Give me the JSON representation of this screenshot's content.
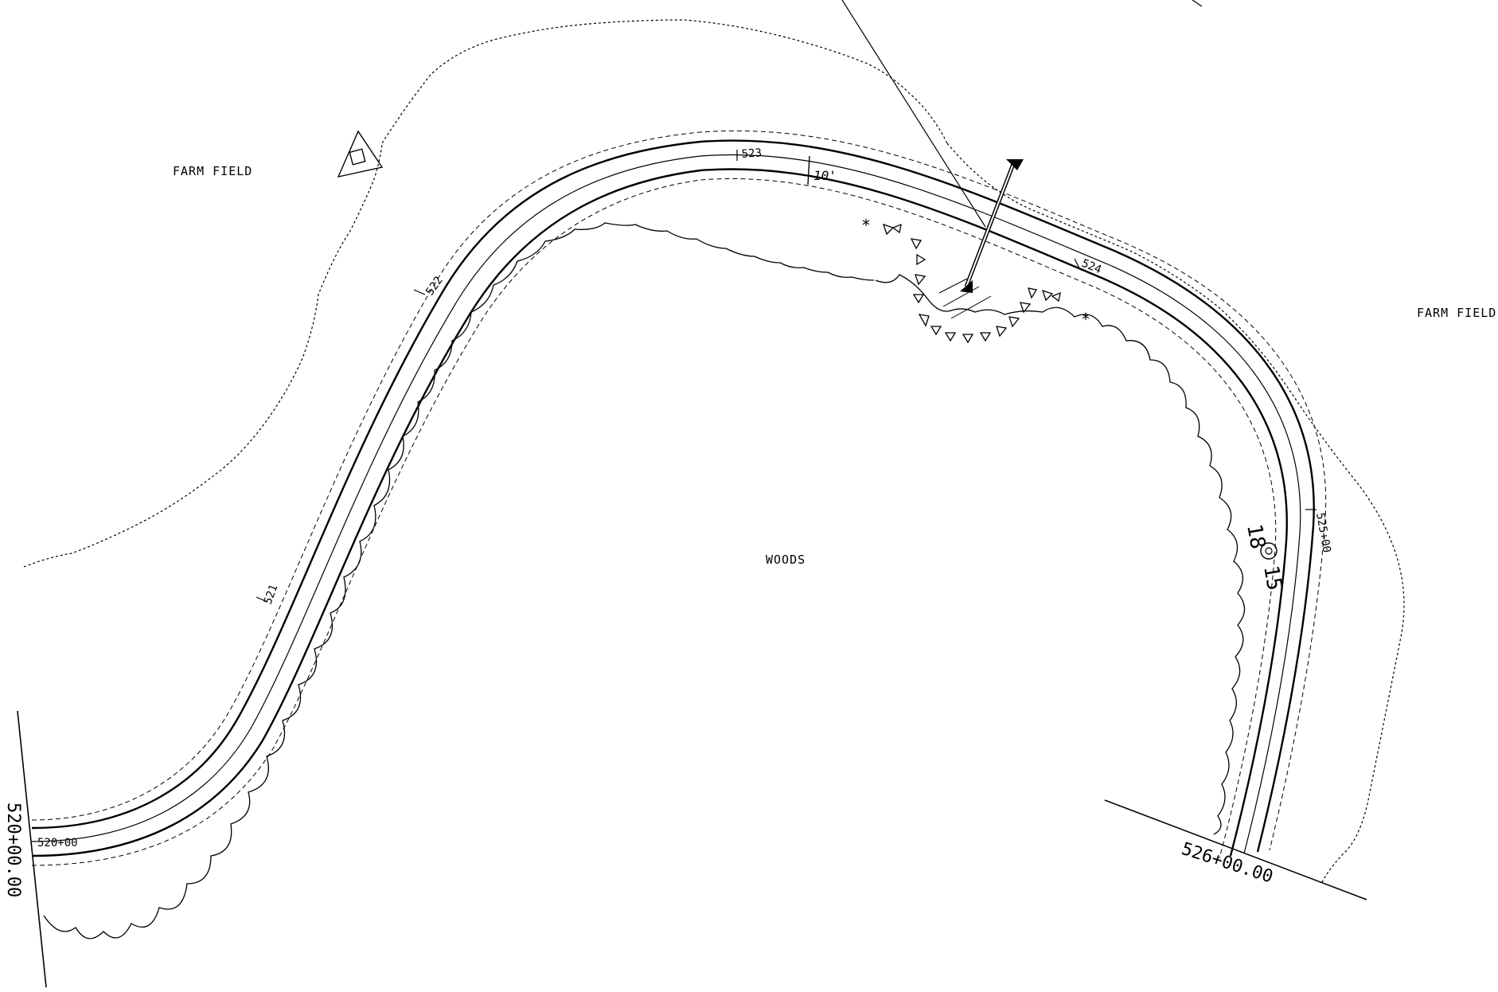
{
  "areas": {
    "farm_field_left": "FARM FIELD",
    "farm_field_right": "FARM FIELD",
    "woods": "WOODS"
  },
  "stations": {
    "s521": "521",
    "s522": "522",
    "s523": "523",
    "s524": "524",
    "s525": "525+00",
    "s520_small": "520+00"
  },
  "match_lines": {
    "start": "520+00.00",
    "end": "526+00.00"
  },
  "dimension": "10'",
  "tree_marker": {
    "left_digits": "18",
    "right_digits": "15"
  }
}
